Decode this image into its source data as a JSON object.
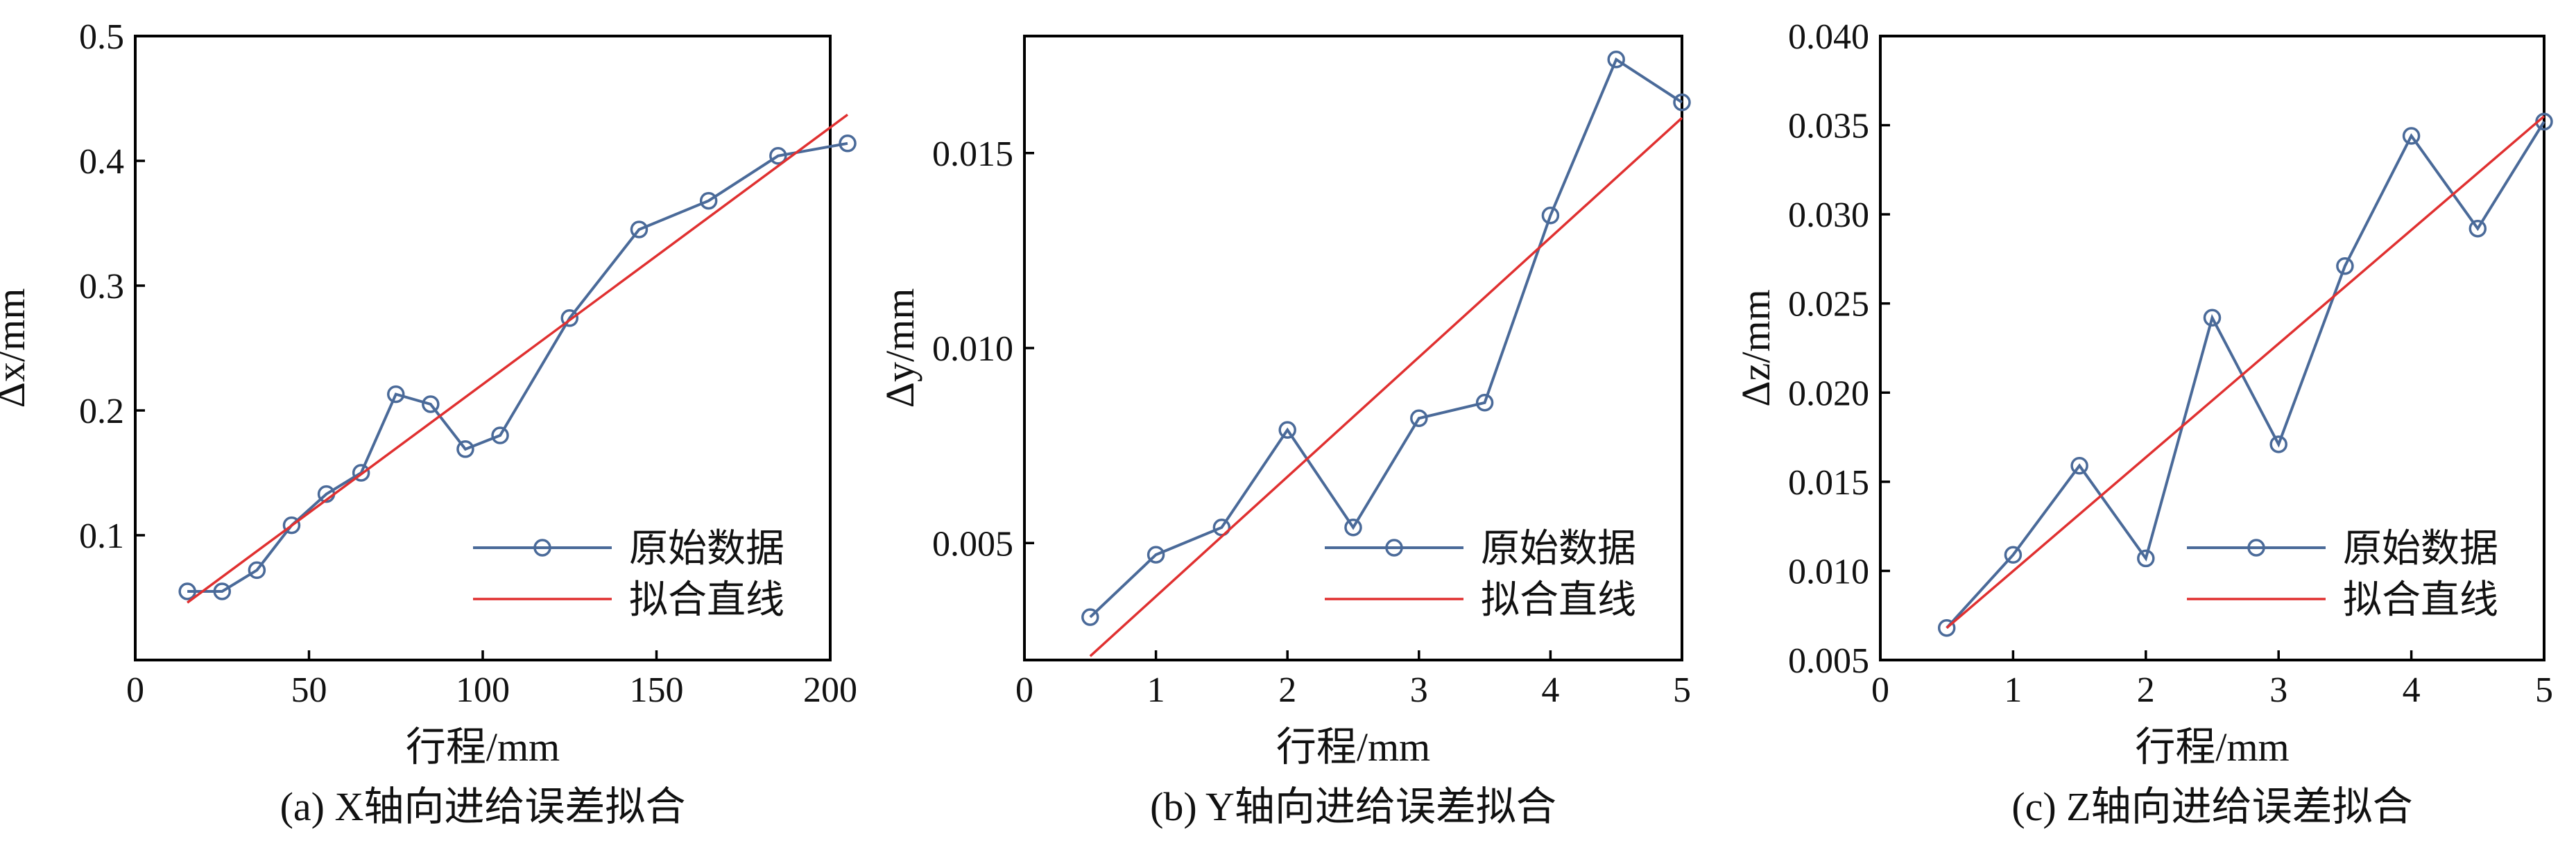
{
  "chart_data": [
    {
      "type": "line",
      "caption": "(a) X轴向进给误差拟合",
      "xlabel": "行程/mm",
      "ylabel": "Δx/mm",
      "xlim": [
        0,
        200
      ],
      "ylim": [
        0,
        0.5
      ],
      "x_ticks": [
        0,
        50,
        100,
        150,
        200
      ],
      "x_tick_labels": [
        "0",
        "50",
        "100",
        "150",
        "200"
      ],
      "y_ticks": [
        0.1,
        0.2,
        0.3,
        0.4,
        0.5
      ],
      "y_tick_labels": [
        "0.1",
        "0.2",
        "0.3",
        "0.4",
        "0.5"
      ],
      "legend_position": "bottom-right",
      "series": [
        {
          "name": "原始数据",
          "color": "#4a6a99",
          "marker": "circle",
          "x": [
            15,
            25,
            35,
            45,
            55,
            65,
            75,
            85,
            95,
            105,
            125,
            145,
            165,
            185,
            205
          ],
          "y": [
            0.055,
            0.055,
            0.072,
            0.108,
            0.133,
            0.15,
            0.213,
            0.205,
            0.169,
            0.18,
            0.274,
            0.345,
            0.368,
            0.404,
            0.414
          ]
        },
        {
          "name": "拟合直线",
          "color": "#e03030",
          "marker": "none",
          "x": [
            15,
            205
          ],
          "y": [
            0.046,
            0.437
          ]
        }
      ]
    },
    {
      "type": "line",
      "caption": "(b) Y轴向进给误差拟合",
      "xlabel": "行程/mm",
      "ylabel": "Δy/mm",
      "xlim": [
        0,
        5
      ],
      "ylim": [
        0.002,
        0.018
      ],
      "x_ticks": [
        0,
        1,
        2,
        3,
        4,
        5
      ],
      "x_tick_labels": [
        "0",
        "1",
        "2",
        "3",
        "4",
        "5"
      ],
      "y_ticks": [
        0.005,
        0.01,
        0.015
      ],
      "y_tick_labels": [
        "0.005",
        "0.010",
        "0.015"
      ],
      "legend_position": "bottom-right",
      "series": [
        {
          "name": "原始数据",
          "color": "#4a6a99",
          "marker": "circle",
          "x": [
            0.5,
            1,
            1.5,
            2,
            2.5,
            3,
            3.5,
            4,
            4.5,
            5
          ],
          "y": [
            0.0031,
            0.0047,
            0.0054,
            0.0079,
            0.0054,
            0.0082,
            0.0086,
            0.0134,
            0.0174,
            0.0163
          ]
        },
        {
          "name": "拟合直线",
          "color": "#e03030",
          "marker": "none",
          "x": [
            0.5,
            5
          ],
          "y": [
            0.0021,
            0.0159
          ]
        }
      ]
    },
    {
      "type": "line",
      "caption": "(c) Z轴向进给误差拟合",
      "xlabel": "行程/mm",
      "ylabel": "Δz/mm",
      "xlim": [
        0,
        5
      ],
      "ylim": [
        0.005,
        0.04
      ],
      "x_ticks": [
        0,
        1,
        2,
        3,
        4,
        5
      ],
      "x_tick_labels": [
        "0",
        "1",
        "2",
        "3",
        "4",
        "5"
      ],
      "y_ticks": [
        0.005,
        0.01,
        0.015,
        0.02,
        0.025,
        0.03,
        0.035,
        0.04
      ],
      "y_tick_labels": [
        "0.005",
        "0.010",
        "0.015",
        "0.020",
        "0.025",
        "0.030",
        "0.035",
        "0.040"
      ],
      "legend_position": "bottom-right",
      "series": [
        {
          "name": "原始数据",
          "color": "#4a6a99",
          "marker": "circle",
          "x": [
            0.5,
            1,
            1.5,
            2,
            2.5,
            3,
            3.5,
            4,
            4.5,
            5
          ],
          "y": [
            0.0068,
            0.0109,
            0.0159,
            0.0107,
            0.0242,
            0.0171,
            0.0271,
            0.0344,
            0.0292,
            0.0352
          ]
        },
        {
          "name": "拟合直线",
          "color": "#e03030",
          "marker": "none",
          "x": [
            0.5,
            5
          ],
          "y": [
            0.0068,
            0.0355
          ]
        }
      ]
    }
  ]
}
